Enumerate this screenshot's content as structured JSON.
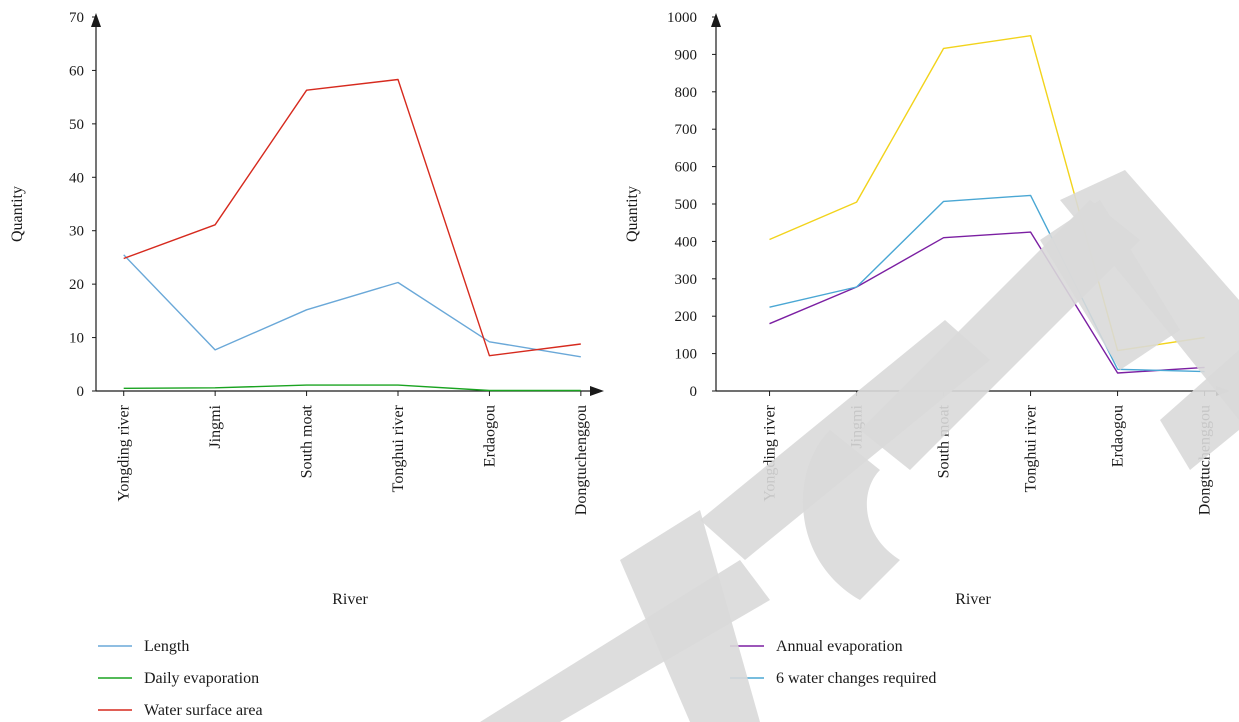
{
  "chart_data": [
    {
      "type": "line",
      "xlabel": "River",
      "ylabel": "Quantity",
      "categories": [
        "Yongding river",
        "Jingmi",
        "South moat",
        "Tonghui river",
        "Erdaogou",
        "Dongtuchenggou"
      ],
      "ylim": [
        0,
        70
      ],
      "yticks": [
        0,
        10,
        20,
        30,
        40,
        50,
        60,
        70
      ],
      "grid": false,
      "legend_position": "bottom-left",
      "series": [
        {
          "name": "Length",
          "color": "#6aa8d8",
          "values": [
            25.5,
            7.7,
            15.2,
            20.3,
            9.2,
            6.4
          ]
        },
        {
          "name": "Daily evaporation",
          "color": "#1aa321",
          "values": [
            0.5,
            0.6,
            1.1,
            1.1,
            0.1,
            0.1
          ]
        },
        {
          "name": "Water surface area",
          "color": "#d62a1e",
          "values": [
            24.8,
            31.1,
            56.3,
            58.3,
            6.6,
            8.8
          ]
        }
      ]
    },
    {
      "type": "line",
      "xlabel": "River",
      "ylabel": "Quantity",
      "categories": [
        "Yongding river",
        "Jingmi",
        "South moat",
        "Tonghui river",
        "Erdaogou",
        "Dongtuchenggou"
      ],
      "ylim": [
        0,
        1000
      ],
      "yticks": [
        0,
        100,
        200,
        300,
        400,
        500,
        600,
        700,
        800,
        900,
        1000
      ],
      "grid": false,
      "legend_position": "bottom-left",
      "series": [
        {
          "name": "Annual evaporation",
          "color": "#7b1fa2",
          "values": [
            180,
            278,
            410,
            425,
            48,
            63
          ]
        },
        {
          "name": "6 water changes required",
          "color": "#4aa7d4",
          "values": [
            224,
            278,
            507,
            523,
            58,
            52
          ]
        },
        {
          "name": "",
          "color": "#f2d31b",
          "values": [
            405,
            505,
            916,
            950,
            108,
            143
          ]
        }
      ]
    }
  ]
}
